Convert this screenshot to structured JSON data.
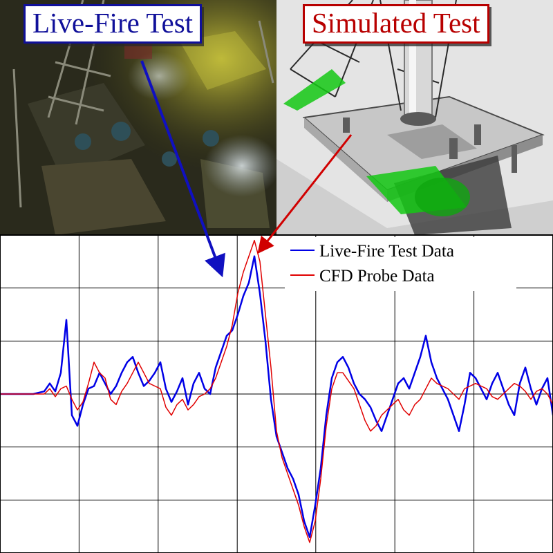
{
  "panels": {
    "live_fire_label": "Live-Fire Test",
    "simulated_label": "Simulated Test"
  },
  "colors": {
    "live_fire": "#0000e6",
    "cfd": "#e00000",
    "live_frame": "#10109a",
    "sim_frame": "#b80000"
  },
  "chart_data": {
    "type": "line",
    "title": "",
    "xlabel": "",
    "ylabel": "",
    "grid": true,
    "legend_position": "top-right",
    "xlim": [
      0,
      100
    ],
    "ylim": [
      -60,
      60
    ],
    "series": [
      {
        "name": "Live-Fire Test Data",
        "color": "#0000e6",
        "x": [
          0,
          2,
          4,
          6,
          8,
          9,
          10,
          11,
          12,
          13,
          14,
          15,
          16,
          17,
          18,
          19,
          20,
          21,
          22,
          23,
          24,
          25,
          26,
          27,
          28,
          29,
          30,
          31,
          32,
          33,
          34,
          35,
          36,
          37,
          38,
          39,
          40,
          41,
          42,
          43,
          44,
          45,
          46,
          47,
          48,
          49,
          50,
          51,
          52,
          53,
          54,
          55,
          56,
          57,
          58,
          59,
          60,
          61,
          62,
          63,
          64,
          65,
          66,
          67,
          68,
          69,
          70,
          71,
          72,
          73,
          74,
          75,
          76,
          77,
          78,
          79,
          80,
          81,
          82,
          83,
          84,
          85,
          86,
          87,
          88,
          89,
          90,
          91,
          92,
          93,
          94,
          95,
          96,
          97,
          98,
          99,
          100
        ],
        "y": [
          0,
          0,
          0,
          0,
          1,
          4,
          1,
          8,
          28,
          -8,
          -12,
          -4,
          2,
          3,
          8,
          4,
          0,
          3,
          8,
          12,
          14,
          8,
          3,
          5,
          8,
          12,
          2,
          -3,
          1,
          6,
          -4,
          4,
          8,
          2,
          0,
          10,
          16,
          22,
          24,
          30,
          37,
          42,
          52,
          38,
          20,
          -2,
          -16,
          -22,
          -28,
          -32,
          -38,
          -48,
          -54,
          -42,
          -28,
          -8,
          6,
          12,
          14,
          10,
          4,
          0,
          -2,
          -5,
          -10,
          -14,
          -8,
          -2,
          4,
          6,
          2,
          8,
          14,
          22,
          12,
          6,
          2,
          -2,
          -8,
          -14,
          -4,
          8,
          6,
          2,
          -2,
          4,
          8,
          2,
          -4,
          -8,
          4,
          10,
          2,
          -4,
          2,
          6,
          -8
        ]
      },
      {
        "name": "CFD Probe Data",
        "color": "#e00000",
        "x": [
          0,
          2,
          4,
          6,
          8,
          9,
          10,
          11,
          12,
          13,
          14,
          15,
          16,
          17,
          18,
          19,
          20,
          21,
          22,
          23,
          24,
          25,
          26,
          27,
          28,
          29,
          30,
          31,
          32,
          33,
          34,
          35,
          36,
          37,
          38,
          39,
          40,
          41,
          42,
          43,
          44,
          45,
          46,
          47,
          48,
          49,
          50,
          51,
          52,
          53,
          54,
          55,
          56,
          57,
          58,
          59,
          60,
          61,
          62,
          63,
          64,
          65,
          66,
          67,
          68,
          69,
          70,
          71,
          72,
          73,
          74,
          75,
          76,
          77,
          78,
          79,
          80,
          81,
          82,
          83,
          84,
          85,
          86,
          87,
          88,
          89,
          90,
          91,
          92,
          93,
          94,
          95,
          96,
          97,
          98,
          99,
          100
        ],
        "y": [
          0,
          0,
          0,
          0,
          0,
          2,
          -1,
          2,
          3,
          -2,
          -6,
          -3,
          4,
          12,
          8,
          6,
          -2,
          -4,
          1,
          4,
          8,
          12,
          8,
          4,
          3,
          2,
          -5,
          -8,
          -4,
          -2,
          -6,
          -4,
          -1,
          0,
          2,
          6,
          12,
          18,
          26,
          38,
          46,
          52,
          58,
          50,
          30,
          10,
          -14,
          -24,
          -30,
          -36,
          -42,
          -50,
          -56,
          -48,
          -32,
          -12,
          2,
          8,
          8,
          5,
          2,
          -4,
          -10,
          -14,
          -12,
          -8,
          -6,
          -4,
          -2,
          -6,
          -8,
          -4,
          -2,
          2,
          6,
          4,
          3,
          2,
          0,
          -2,
          2,
          3,
          4,
          3,
          2,
          -1,
          -2,
          0,
          2,
          4,
          3,
          1,
          -2,
          1,
          2,
          0,
          -4
        ]
      }
    ]
  }
}
